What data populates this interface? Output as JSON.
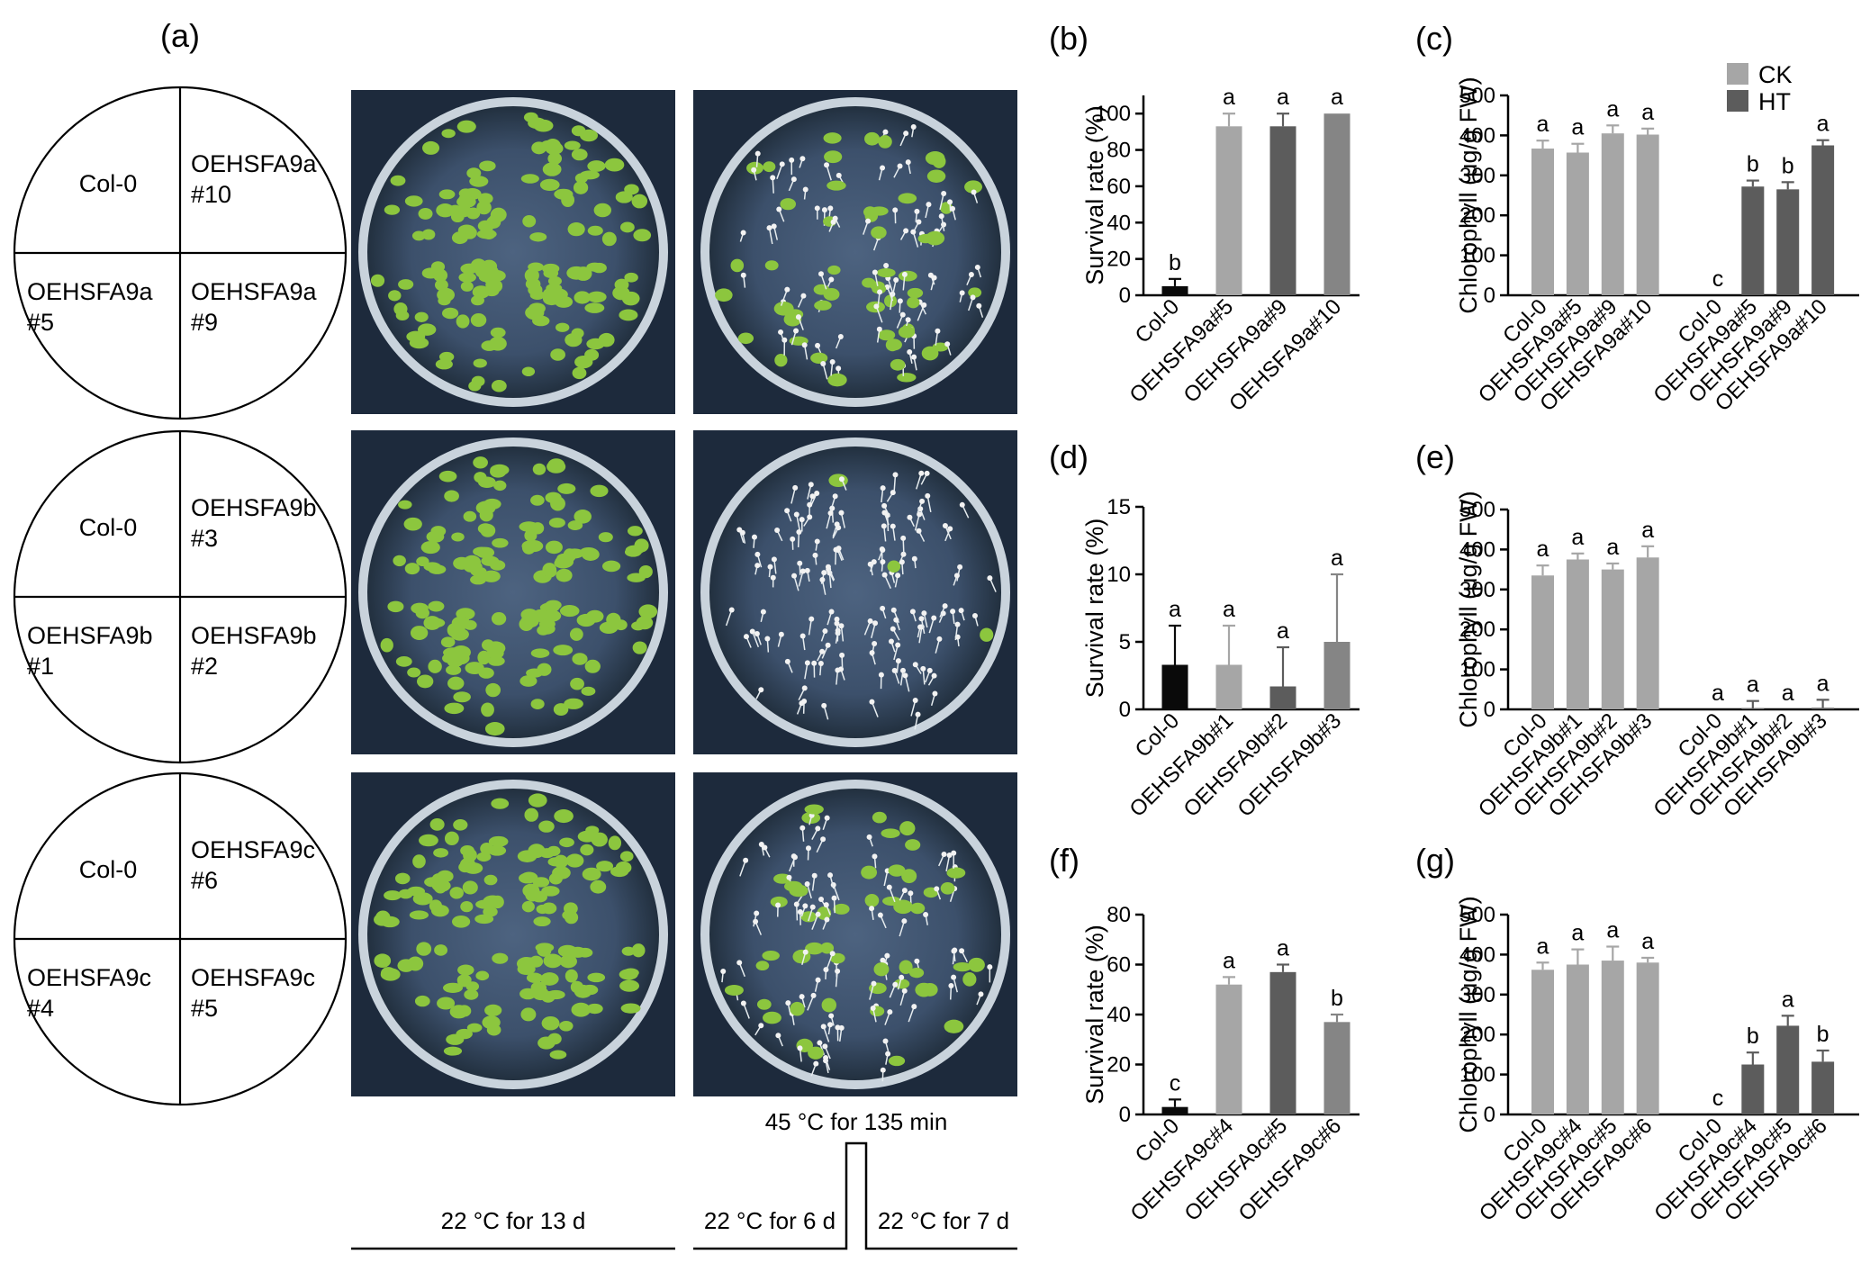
{
  "panels": {
    "a": "(a)",
    "b": "(b)",
    "c": "(c)",
    "d": "(d)",
    "e": "(e)",
    "f": "(f)",
    "g": "(g)"
  },
  "plate_diagrams": [
    {
      "top_left": [
        "Col-0"
      ],
      "top_right": [
        "OEHSFA9a",
        "#10"
      ],
      "bottom_left": [
        "OEHSFA9a",
        "#5"
      ],
      "bottom_right": [
        "OEHSFA9a",
        "#9"
      ]
    },
    {
      "top_left": [
        "Col-0"
      ],
      "top_right": [
        "OEHSFA9b",
        "#3"
      ],
      "bottom_left": [
        "OEHSFA9b",
        "#1"
      ],
      "bottom_right": [
        "OEHSFA9b",
        "#2"
      ]
    },
    {
      "top_left": [
        "Col-0"
      ],
      "top_right": [
        "OEHSFA9c",
        "#6"
      ],
      "bottom_left": [
        "OEHSFA9c",
        "#4"
      ],
      "bottom_right": [
        "OEHSFA9c",
        "#5"
      ]
    }
  ],
  "conditions": {
    "control": "22 °C for 13 d",
    "heat_top": "45 °C for 135 min",
    "heat_before": "22 °C for 6 d",
    "heat_after": "22 °C for 7 d"
  },
  "colors": {
    "col0": "#0a0a0a",
    "line_light": "#a6a6a6",
    "line_dark": "#5c5c5c",
    "line_mid": "#858585",
    "ck": "#a6a6a6",
    "ht": "#5c5c5c",
    "plate_bg": "#1d2a3c",
    "seedling_green": "#8cc63e"
  },
  "chart_data": [
    {
      "panel": "b",
      "type": "bar",
      "categories": [
        "Col-0",
        "OEHSFA9a#5",
        "OEHSFA9a#9",
        "OEHSFA9a#10"
      ],
      "values": [
        5,
        93,
        93,
        100
      ],
      "errors": [
        4,
        7,
        7,
        0
      ],
      "letters": [
        "b",
        "a",
        "a",
        "a"
      ],
      "ylabel": "Survival rate (%)",
      "ylim": [
        0,
        110
      ],
      "yticks": [
        0,
        20,
        40,
        60,
        80,
        100
      ]
    },
    {
      "panel": "c",
      "type": "bar",
      "categories": [
        "Col-0",
        "OEHSFA9a#5",
        "OEHSFA9a#9",
        "OEHSFA9a#10",
        "Col-0",
        "OEHSFA9a#5",
        "OEHSFA9a#9",
        "OEHSFA9a#10"
      ],
      "values": [
        367,
        357,
        405,
        402,
        0,
        272,
        265,
        375
      ],
      "errors": [
        20,
        22,
        20,
        15,
        0,
        15,
        18,
        13
      ],
      "letters": [
        "a",
        "a",
        "a",
        "a",
        "c",
        "b",
        "b",
        "a"
      ],
      "groups": [
        "CK",
        "CK",
        "CK",
        "CK",
        "HT",
        "HT",
        "HT",
        "HT"
      ],
      "legend": [
        "CK",
        "HT"
      ],
      "ylabel": "Chlorophyll (μg/g FW)",
      "ylim": [
        0,
        500
      ],
      "yticks": [
        0,
        100,
        200,
        300,
        400,
        500
      ]
    },
    {
      "panel": "d",
      "type": "bar",
      "categories": [
        "Col-0",
        "OEHSFA9b#1",
        "OEHSFA9b#2",
        "OEHSFA9b#3"
      ],
      "values": [
        3.3,
        3.3,
        1.7,
        5
      ],
      "errors": [
        2.9,
        2.9,
        2.9,
        5
      ],
      "letters": [
        "a",
        "a",
        "a",
        "a"
      ],
      "ylabel": "Survival rate (%)",
      "ylim": [
        0,
        15
      ],
      "yticks": [
        0,
        5,
        10,
        15
      ]
    },
    {
      "panel": "e",
      "type": "bar",
      "categories": [
        "Col-0",
        "OEHSFA9b#1",
        "OEHSFA9b#2",
        "OEHSFA9b#3",
        "Col-0",
        "OEHSFA9b#1",
        "OEHSFA9b#2",
        "OEHSFA9b#3"
      ],
      "values": [
        335,
        375,
        350,
        380,
        0,
        3,
        0,
        4
      ],
      "errors": [
        25,
        15,
        15,
        28,
        0,
        18,
        0,
        20
      ],
      "letters": [
        "a",
        "a",
        "a",
        "a",
        "a",
        "a",
        "a",
        "a"
      ],
      "groups": [
        "CK",
        "CK",
        "CK",
        "CK",
        "HT",
        "HT",
        "HT",
        "HT"
      ],
      "ylabel": "Chlorophyll (μg/g FW)",
      "ylim": [
        0,
        500
      ],
      "yticks": [
        0,
        100,
        200,
        300,
        400,
        500
      ]
    },
    {
      "panel": "f",
      "type": "bar",
      "categories": [
        "Col-0",
        "OEHSFA9c#4",
        "OEHSFA9c#5",
        "OEHSFA9c#6"
      ],
      "values": [
        3,
        52,
        57,
        37
      ],
      "errors": [
        3,
        3,
        3,
        3
      ],
      "letters": [
        "c",
        "a",
        "a",
        "b"
      ],
      "ylabel": "Survival rate (%)",
      "ylim": [
        0,
        80
      ],
      "yticks": [
        0,
        20,
        40,
        60,
        80
      ]
    },
    {
      "panel": "g",
      "type": "bar",
      "categories": [
        "Col-0",
        "OEHSFA9c#4",
        "OEHSFA9c#5",
        "OEHSFA9c#6",
        "Col-0",
        "OEHSFA9c#4",
        "OEHSFA9c#5",
        "OEHSFA9c#6"
      ],
      "values": [
        362,
        375,
        385,
        380,
        0,
        125,
        222,
        132
      ],
      "errors": [
        18,
        38,
        35,
        12,
        0,
        30,
        25,
        28
      ],
      "letters": [
        "a",
        "a",
        "a",
        "a",
        "c",
        "b",
        "a",
        "b"
      ],
      "groups": [
        "CK",
        "CK",
        "CK",
        "CK",
        "HT",
        "HT",
        "HT",
        "HT"
      ],
      "ylabel": "Chlorophyll (μg/g FW)",
      "ylim": [
        0,
        500
      ],
      "yticks": [
        0,
        100,
        200,
        300,
        400,
        500
      ]
    }
  ]
}
